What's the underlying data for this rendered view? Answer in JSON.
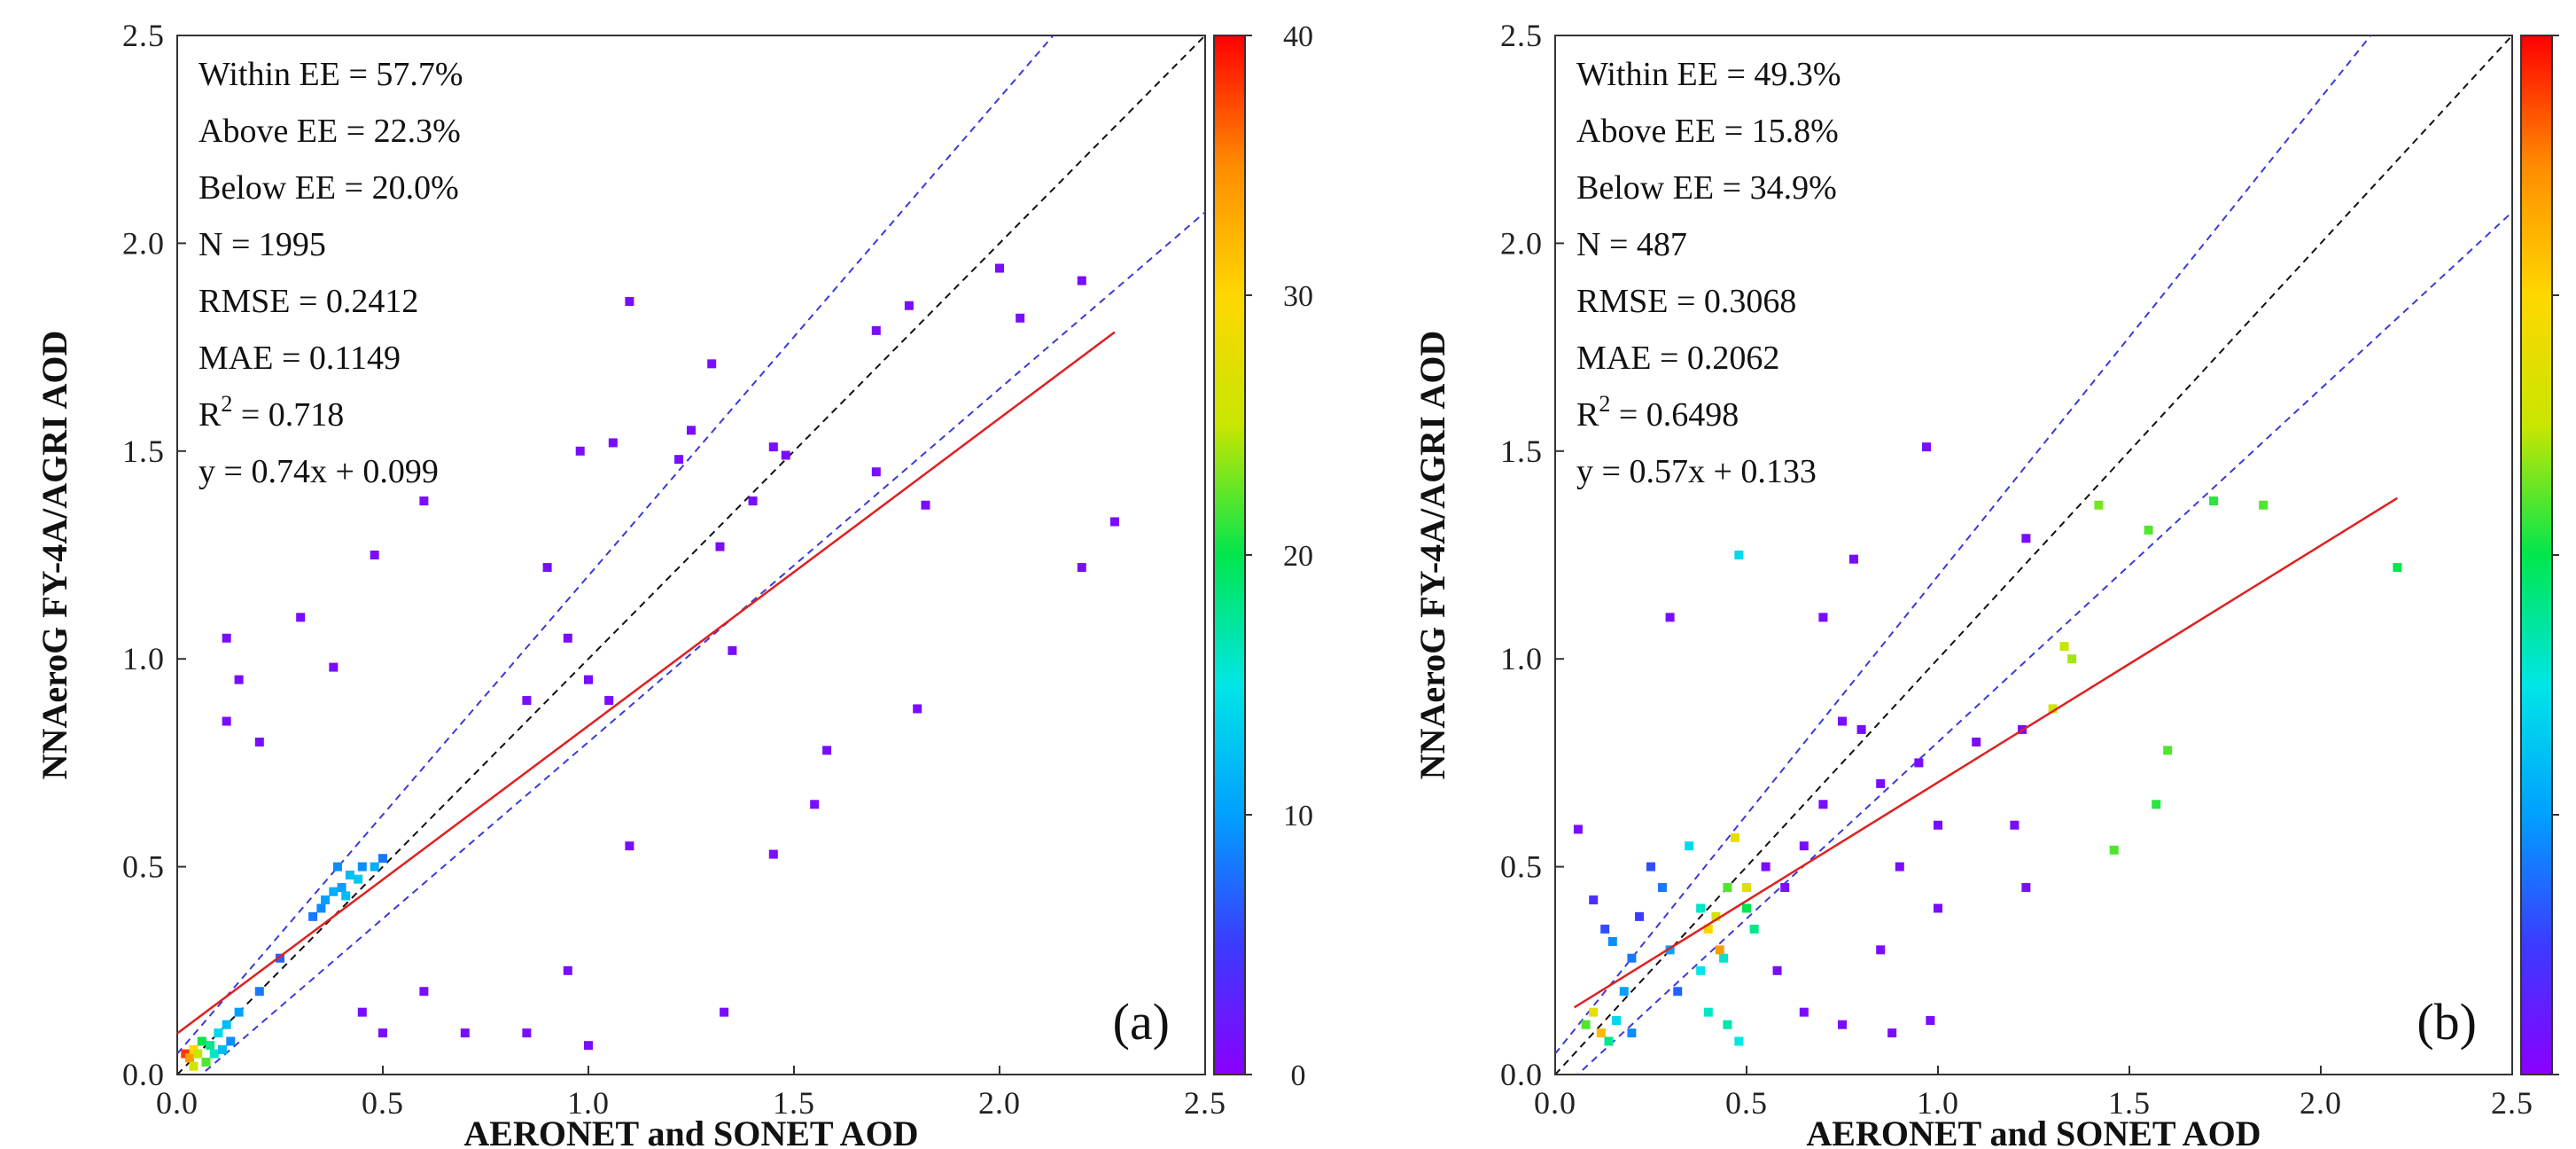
{
  "figure": {
    "colorbar_ticks": [
      "0",
      "10",
      "20",
      "30",
      "40"
    ],
    "colormap": [
      "#8a00ff",
      "#3b3bff",
      "#00a0ff",
      "#00e6e6",
      "#00e64d",
      "#c8e600",
      "#ffd700",
      "#ff8c00",
      "#ff0000"
    ],
    "one_to_one_line_color": "#111111",
    "ee_line_color": "#3a3ad8",
    "fit_line_color": "#e02020"
  },
  "chart_data": [
    {
      "type": "scatter",
      "panel_label": "(a)",
      "title": "",
      "xlabel": "AERONET and SONET AOD",
      "ylabel": "NNAeroG FY-4A/AGRI AOD",
      "xlim": [
        0,
        2.5
      ],
      "ylim": [
        0,
        2.5
      ],
      "xticks": [
        "0.0",
        "0.5",
        "1.0",
        "1.5",
        "2.0",
        "2.5"
      ],
      "yticks": [
        "0.0",
        "0.5",
        "1.0",
        "1.5",
        "2.0",
        "2.5"
      ],
      "colorbar": {
        "min": 0,
        "max": 40
      },
      "stats": [
        {
          "label": "Within EE = ",
          "value": "57.7%"
        },
        {
          "label": "Above EE = ",
          "value": "22.3%"
        },
        {
          "label": "Below EE = ",
          "value": "20.0%"
        },
        {
          "label": "N = ",
          "value": "1995"
        },
        {
          "label": "RMSE = ",
          "value": "0.2412"
        },
        {
          "label": "MAE = ",
          "value": "0.1149"
        },
        {
          "label": "R",
          "sup": "2",
          "label2": " = ",
          "value": "0.718"
        },
        {
          "label": "y = ",
          "value": "0.74x + 0.099"
        }
      ],
      "fit": {
        "slope": 0.74,
        "intercept": 0.099,
        "x_range": [
          0,
          2.28
        ]
      },
      "ee": {
        "abs": 0.05,
        "rel": 0.15
      },
      "points": [
        [
          2.0,
          1.94,
          1
        ],
        [
          2.05,
          1.82,
          1
        ],
        [
          2.2,
          1.91,
          1
        ],
        [
          2.2,
          1.22,
          1
        ],
        [
          2.28,
          1.33,
          1
        ],
        [
          1.78,
          1.85,
          1
        ],
        [
          1.82,
          1.37,
          1
        ],
        [
          1.7,
          1.79,
          1
        ],
        [
          1.7,
          1.45,
          1
        ],
        [
          1.45,
          0.53,
          1
        ],
        [
          1.58,
          0.78,
          1
        ],
        [
          1.55,
          0.65,
          1
        ],
        [
          1.1,
          1.86,
          1
        ],
        [
          1.3,
          1.71,
          1
        ],
        [
          1.32,
          1.27,
          1
        ],
        [
          1.35,
          1.02,
          1
        ],
        [
          1.22,
          1.48,
          1
        ],
        [
          1.45,
          1.51,
          1
        ],
        [
          1.48,
          1.49,
          1
        ],
        [
          1.8,
          0.88,
          1
        ],
        [
          1.33,
          0.15,
          1
        ],
        [
          1.4,
          1.38,
          1
        ],
        [
          1.25,
          1.55,
          1
        ],
        [
          1.06,
          1.52,
          1
        ],
        [
          0.98,
          1.5,
          1
        ],
        [
          0.6,
          1.38,
          1
        ],
        [
          0.48,
          1.25,
          1
        ],
        [
          0.3,
          1.1,
          1
        ],
        [
          0.38,
          0.98,
          1
        ],
        [
          0.15,
          0.95,
          1
        ],
        [
          0.12,
          1.05,
          1
        ],
        [
          0.9,
          1.22,
          1
        ],
        [
          0.95,
          1.05,
          1
        ],
        [
          1.0,
          0.95,
          1
        ],
        [
          1.05,
          0.9,
          1
        ],
        [
          0.85,
          0.9,
          1
        ],
        [
          1.1,
          0.55,
          1
        ],
        [
          0.95,
          0.25,
          1
        ],
        [
          1.0,
          0.07,
          1
        ],
        [
          0.85,
          0.1,
          1
        ],
        [
          0.7,
          0.1,
          1
        ],
        [
          0.12,
          0.85,
          1
        ],
        [
          0.2,
          0.8,
          1
        ],
        [
          0.45,
          0.15,
          1
        ],
        [
          0.5,
          0.1,
          1
        ],
        [
          0.6,
          0.2,
          1
        ],
        [
          0.02,
          0.05,
          38
        ],
        [
          0.03,
          0.04,
          34
        ],
        [
          0.04,
          0.06,
          30
        ],
        [
          0.05,
          0.05,
          25
        ],
        [
          0.06,
          0.08,
          20
        ],
        [
          0.08,
          0.07,
          18
        ],
        [
          0.1,
          0.1,
          14
        ],
        [
          0.12,
          0.12,
          12
        ],
        [
          0.15,
          0.15,
          10
        ],
        [
          0.07,
          0.03,
          22
        ],
        [
          0.09,
          0.05,
          16
        ],
        [
          0.11,
          0.06,
          12
        ],
        [
          0.04,
          0.02,
          26
        ],
        [
          0.13,
          0.08,
          9
        ],
        [
          0.2,
          0.2,
          8
        ],
        [
          0.25,
          0.28,
          7
        ],
        [
          0.35,
          0.4,
          9
        ],
        [
          0.38,
          0.44,
          11
        ],
        [
          0.4,
          0.45,
          10
        ],
        [
          0.42,
          0.48,
          12
        ],
        [
          0.45,
          0.5,
          9
        ],
        [
          0.48,
          0.5,
          11
        ],
        [
          0.33,
          0.38,
          8
        ],
        [
          0.36,
          0.42,
          10
        ],
        [
          0.44,
          0.47,
          13
        ],
        [
          0.5,
          0.52,
          8
        ],
        [
          0.39,
          0.5,
          9
        ],
        [
          0.41,
          0.43,
          12
        ]
      ]
    },
    {
      "type": "scatter",
      "panel_label": "(b)",
      "title": "",
      "xlabel": "AERONET and SONET AOD",
      "ylabel": "NNAeroG FY-4A/AGRI AOD",
      "xlim": [
        0,
        2.5
      ],
      "ylim": [
        0,
        2.5
      ],
      "xticks": [
        "0.0",
        "0.5",
        "1.0",
        "1.5",
        "2.0",
        "2.5"
      ],
      "yticks": [
        "0.0",
        "0.5",
        "1.0",
        "1.5",
        "2.0",
        "2.5"
      ],
      "colorbar": {
        "min": 0,
        "max": 40
      },
      "stats": [
        {
          "label": "Within EE = ",
          "value": "49.3%"
        },
        {
          "label": "Above EE = ",
          "value": "15.8%"
        },
        {
          "label": "Below EE = ",
          "value": "34.9%"
        },
        {
          "label": "N = ",
          "value": "487"
        },
        {
          "label": "RMSE = ",
          "value": "0.3068"
        },
        {
          "label": "MAE = ",
          "value": "0.2062"
        },
        {
          "label": "R",
          "sup": "2",
          "label2": " = ",
          "value": "0.6498"
        },
        {
          "label": "y = ",
          "value": "0.57x + 0.133"
        }
      ],
      "fit": {
        "slope": 0.57,
        "intercept": 0.133,
        "x_range": [
          0.05,
          2.2
        ]
      },
      "ee": {
        "abs": 0.05,
        "rel": 0.15
      },
      "points": [
        [
          2.2,
          1.22,
          20
        ],
        [
          1.85,
          1.37,
          22
        ],
        [
          1.72,
          1.38,
          21
        ],
        [
          1.55,
          1.31,
          22
        ],
        [
          1.42,
          1.37,
          23
        ],
        [
          1.35,
          1.0,
          24
        ],
        [
          1.33,
          1.03,
          25
        ],
        [
          1.3,
          0.88,
          26
        ],
        [
          1.6,
          0.78,
          22
        ],
        [
          1.57,
          0.65,
          21
        ],
        [
          1.46,
          0.54,
          22
        ],
        [
          0.97,
          1.51,
          1
        ],
        [
          0.78,
          1.24,
          1
        ],
        [
          0.7,
          1.1,
          1
        ],
        [
          0.3,
          1.1,
          1
        ],
        [
          0.48,
          1.25,
          14
        ],
        [
          1.23,
          1.29,
          1
        ],
        [
          1.22,
          0.83,
          1
        ],
        [
          1.2,
          0.6,
          1
        ],
        [
          1.23,
          0.45,
          1
        ],
        [
          1.1,
          0.8,
          1
        ],
        [
          1.0,
          0.6,
          1
        ],
        [
          0.95,
          0.75,
          1
        ],
        [
          0.85,
          0.7,
          1
        ],
        [
          0.8,
          0.83,
          1
        ],
        [
          0.75,
          0.85,
          1
        ],
        [
          0.7,
          0.65,
          1
        ],
        [
          0.65,
          0.55,
          1
        ],
        [
          0.6,
          0.45,
          1
        ],
        [
          0.55,
          0.5,
          1
        ],
        [
          0.85,
          0.3,
          1
        ],
        [
          0.9,
          0.5,
          1
        ],
        [
          1.0,
          0.4,
          1
        ],
        [
          0.98,
          0.13,
          1
        ],
        [
          0.88,
          0.1,
          1
        ],
        [
          0.75,
          0.12,
          1
        ],
        [
          0.65,
          0.15,
          1
        ],
        [
          0.58,
          0.25,
          1
        ],
        [
          0.08,
          0.12,
          22
        ],
        [
          0.1,
          0.15,
          28
        ],
        [
          0.12,
          0.1,
          32
        ],
        [
          0.14,
          0.08,
          18
        ],
        [
          0.16,
          0.13,
          14
        ],
        [
          0.18,
          0.2,
          10
        ],
        [
          0.2,
          0.28,
          8
        ],
        [
          0.15,
          0.32,
          9
        ],
        [
          0.13,
          0.35,
          6
        ],
        [
          0.22,
          0.38,
          5
        ],
        [
          0.1,
          0.42,
          4
        ],
        [
          0.06,
          0.59,
          1
        ],
        [
          0.35,
          0.55,
          14
        ],
        [
          0.38,
          0.4,
          16
        ],
        [
          0.4,
          0.35,
          30
        ],
        [
          0.42,
          0.38,
          26
        ],
        [
          0.45,
          0.45,
          22
        ],
        [
          0.47,
          0.57,
          28
        ],
        [
          0.5,
          0.4,
          20
        ],
        [
          0.52,
          0.35,
          18
        ],
        [
          0.44,
          0.28,
          16
        ],
        [
          0.38,
          0.25,
          15
        ],
        [
          0.4,
          0.15,
          16
        ],
        [
          0.45,
          0.12,
          17
        ],
        [
          0.48,
          0.08,
          15
        ],
        [
          0.43,
          0.3,
          34
        ],
        [
          0.5,
          0.45,
          27
        ],
        [
          0.3,
          0.3,
          10
        ],
        [
          0.28,
          0.45,
          8
        ],
        [
          0.25,
          0.5,
          6
        ],
        [
          0.32,
          0.2,
          7
        ],
        [
          0.2,
          0.1,
          9
        ]
      ]
    }
  ]
}
